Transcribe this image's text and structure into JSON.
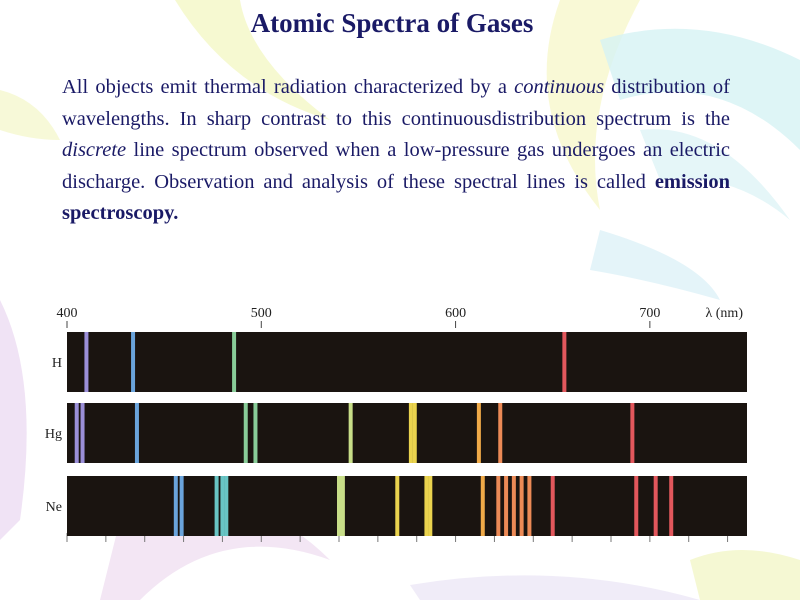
{
  "slide": {
    "title": "Atomic Spectra of Gases",
    "paragraph": {
      "p1": "All objects emit thermal radiation characterized by a",
      "em1": "continuous",
      "p2": "distribution of wavelengths. In sharp contrast to this continuousdistribution spectrum is the",
      "em2": "discrete",
      "p3": "line spectrum observed when a low-pressure gas undergoes an electric discharge. Observation and analysis of these spectral lines is called",
      "strong": "emission spectroscopy."
    }
  },
  "chart_data": {
    "type": "spectral-lines",
    "x_axis": {
      "range": [
        400,
        750
      ],
      "ticks": [
        400,
        500,
        600,
        700
      ],
      "label": "λ (nm)"
    },
    "gases": [
      {
        "name": "H",
        "lines": [
          410,
          434,
          486,
          656
        ]
      },
      {
        "name": "Hg",
        "lines": [
          405,
          408,
          436,
          492,
          497,
          546,
          577,
          579,
          612,
          623,
          691
        ]
      },
      {
        "name": "Ne",
        "lines": [
          456,
          459,
          477,
          480,
          482,
          540,
          542,
          570,
          585,
          587,
          614,
          622,
          626,
          630,
          634,
          638,
          650,
          693,
          703,
          711
        ]
      }
    ],
    "colors": {
      "spectrum_background": "#1a1410"
    }
  }
}
